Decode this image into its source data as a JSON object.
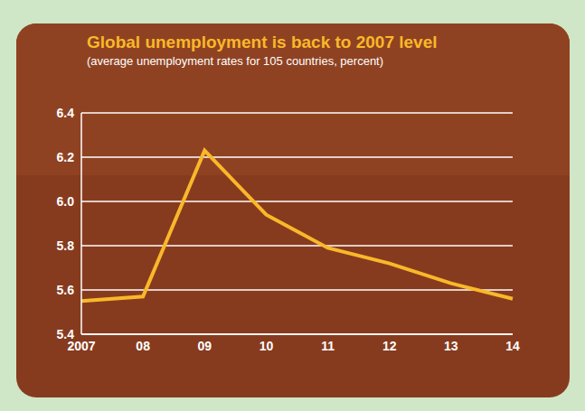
{
  "chart_data": {
    "type": "line",
    "title": "Global unemployment is back to 2007 level",
    "subtitle": "(average unemployment rates for 105 countries, percent)",
    "categories": [
      "2007",
      "08",
      "09",
      "10",
      "11",
      "12",
      "13",
      "14"
    ],
    "values": [
      5.55,
      5.57,
      6.23,
      5.94,
      5.79,
      5.72,
      5.63,
      5.56
    ],
    "color": "#f9b82a",
    "ylim": [
      5.4,
      6.4
    ],
    "yticks": [
      5.4,
      5.6,
      5.8,
      {
        "value": 6,
        "label": "6.0"
      },
      6.2,
      6.4
    ],
    "grid": true
  }
}
